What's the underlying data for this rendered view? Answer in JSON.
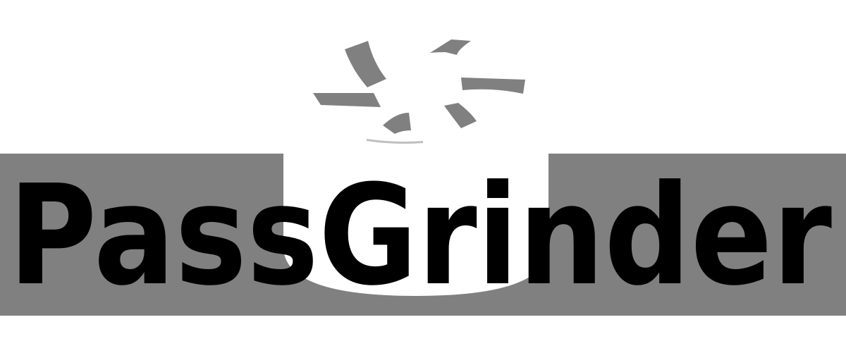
{
  "logo": {
    "wordmark": "PassGrinder",
    "icon": "grinder-burst-icon",
    "colors": {
      "band": "#808080",
      "text": "#000000",
      "accent": "#7f7f7f",
      "background": "#ffffff"
    }
  }
}
